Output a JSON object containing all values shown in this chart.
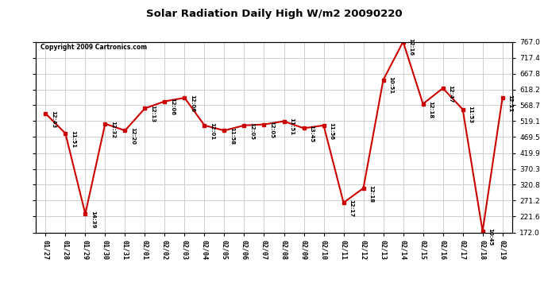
{
  "title": "Solar Radiation Daily High W/m2 20090220",
  "copyright": "Copyright 2009 Cartronics.com",
  "background_color": "#ffffff",
  "plot_bg_color": "#ffffff",
  "grid_color": "#c8c8c8",
  "line_color": "#cc0000",
  "marker_color": "#cc0000",
  "dates": [
    "01/27",
    "01/28",
    "01/29",
    "01/30",
    "01/31",
    "02/01",
    "02/02",
    "02/03",
    "02/04",
    "02/05",
    "02/06",
    "02/07",
    "02/08",
    "02/09",
    "02/10",
    "02/11",
    "02/12",
    "02/13",
    "02/14",
    "02/15",
    "02/16",
    "02/17",
    "02/18",
    "02/19"
  ],
  "values": [
    543,
    481,
    230,
    511,
    490,
    559,
    581,
    592,
    506,
    490,
    506,
    509,
    519,
    497,
    506,
    265,
    310,
    648,
    767,
    573,
    622,
    556,
    176,
    592
  ],
  "time_labels": [
    "12:43",
    "11:51",
    "14:39",
    "12:32",
    "12:20",
    "12:13",
    "12:06",
    "12:06",
    "12:01",
    "11:58",
    "12:05",
    "12:05",
    "11:51",
    "13:45",
    "11:56",
    "12:17",
    "12:18",
    "10:51",
    "12:16",
    "12:18",
    "12:47",
    "11:53",
    "10:45",
    "12:11"
  ],
  "ylim_min": 172.0,
  "ylim_max": 767.0,
  "yticks": [
    172.0,
    221.6,
    271.2,
    320.8,
    370.3,
    419.9,
    469.5,
    519.1,
    568.7,
    618.2,
    667.8,
    717.4,
    767.0
  ]
}
